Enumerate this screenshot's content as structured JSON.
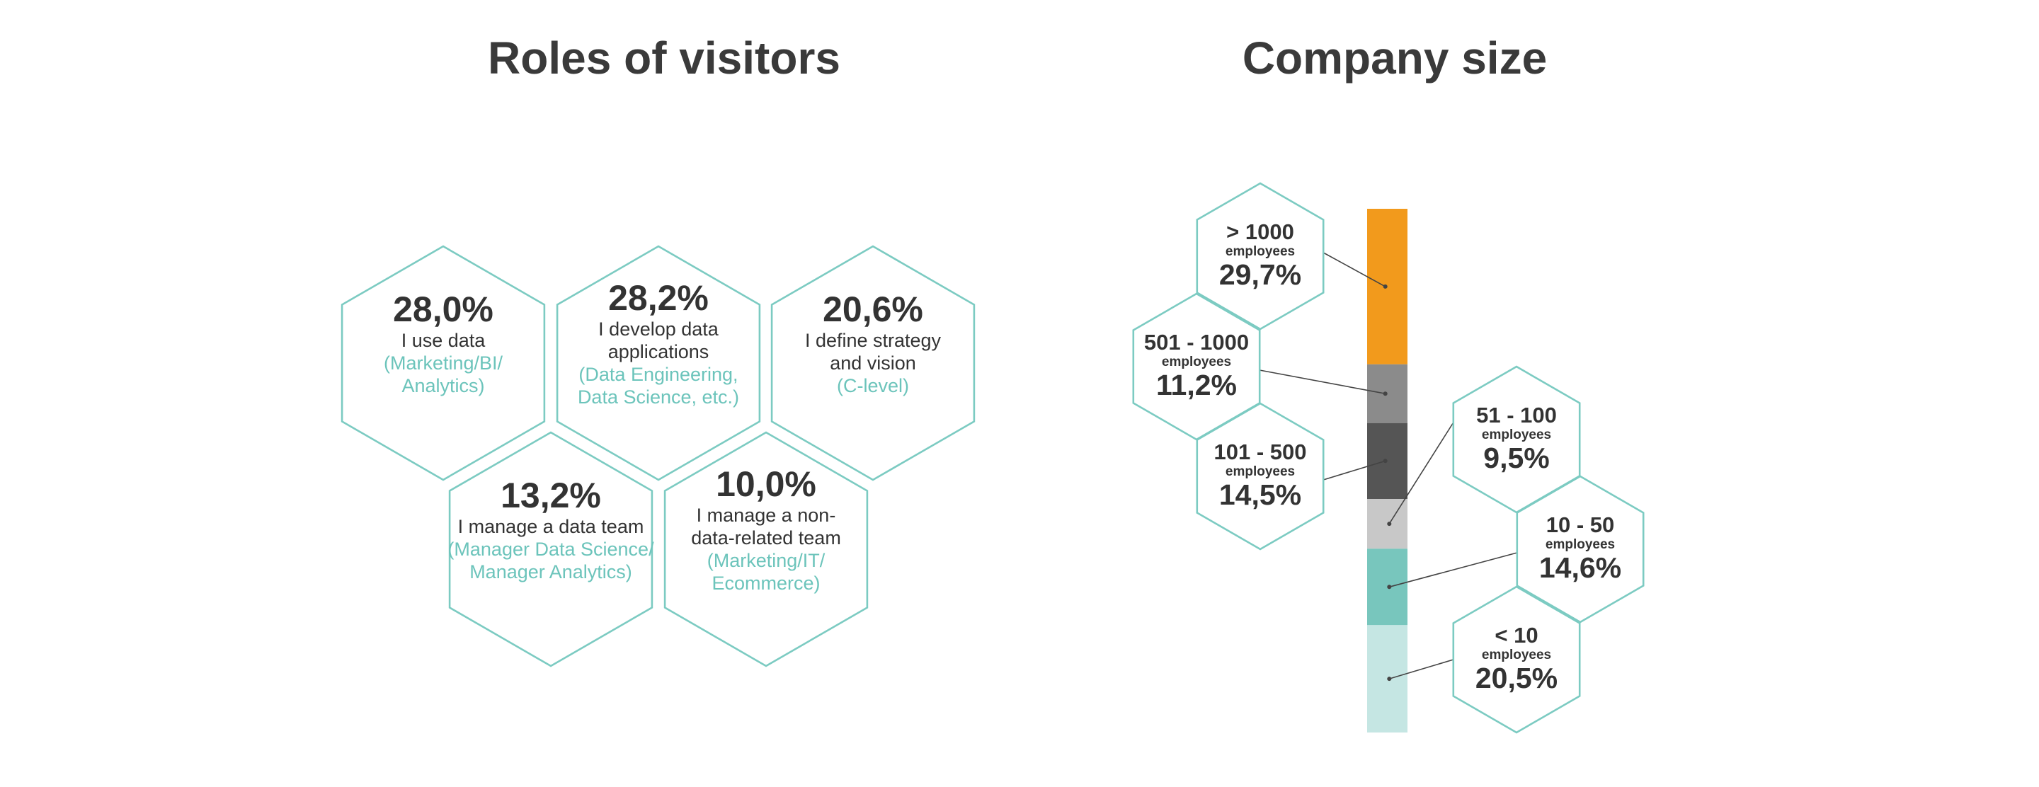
{
  "chart_data": [
    {
      "type": "hexagon-infographic",
      "title": "Roles of visitors",
      "items": [
        {
          "value": 28.0,
          "label": "28,0%",
          "lines": [
            "I use data"
          ],
          "sub": [
            "(Marketing/BI/",
            "Analytics)"
          ],
          "highlight": false
        },
        {
          "value": 28.2,
          "label": "28,2%",
          "lines": [
            "I develop data",
            "applications"
          ],
          "sub": [
            "(Data Engineering,",
            "Data Science, etc.)"
          ],
          "highlight": false
        },
        {
          "value": 20.6,
          "label": "20,6%",
          "lines": [
            "I define strategy",
            "and vision"
          ],
          "sub": [
            "(C-level)"
          ],
          "highlight": true
        },
        {
          "value": 13.2,
          "label": "13,2%",
          "lines": [
            "I manage a data team"
          ],
          "sub": [
            "(Manager Data Science/",
            "Manager Analytics)"
          ],
          "highlight": false
        },
        {
          "value": 10.0,
          "label": "10,0%",
          "lines": [
            "I manage a non-",
            "data-related team"
          ],
          "sub": [
            "(Marketing/IT/",
            "Ecommerce)"
          ],
          "highlight": false
        }
      ]
    },
    {
      "type": "stacked-bar",
      "title": "Company size",
      "unit_label": "employees",
      "segments": [
        {
          "category": "> 1000",
          "value": 29.7,
          "label": "29,7%",
          "color": "#f29a1c"
        },
        {
          "category": "501 - 1000",
          "value": 11.2,
          "label": "11,2%",
          "color": "#8b8b8b"
        },
        {
          "category": "101 - 500",
          "value": 14.5,
          "label": "14,5%",
          "color": "#555555"
        },
        {
          "category": "51 - 100",
          "value": 9.5,
          "label": "9,5%",
          "color": "#c8c8c8"
        },
        {
          "category": "10 - 50",
          "value": 14.6,
          "label": "14,6%",
          "color": "#78c6bd"
        },
        {
          "category": "< 10",
          "value": 20.5,
          "label": "20,5%",
          "color": "#c5e6e3"
        }
      ]
    }
  ],
  "colors": {
    "accent": "#f29a1c",
    "teal": "#6cc4bb",
    "hex_stroke": "#7ccbc2",
    "text": "#333333"
  }
}
